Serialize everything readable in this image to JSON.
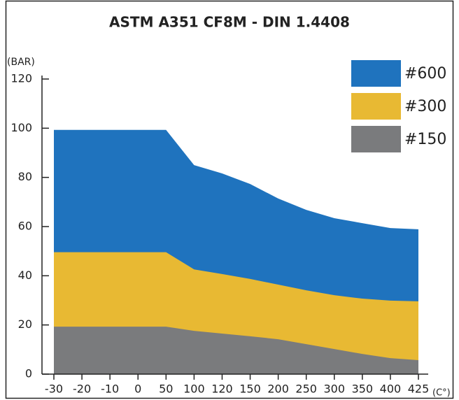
{
  "chart_data": {
    "type": "area",
    "title": "ASTM A351 CF8M - DIN 1.4408",
    "y_label": "(BAR)",
    "x_label": "(C°)",
    "categories": [
      "-30",
      "-20",
      "-10",
      "0",
      "50",
      "100",
      "120",
      "150",
      "200",
      "250",
      "300",
      "350",
      "400",
      "425"
    ],
    "series": [
      {
        "name": "#600",
        "color": "#1f73be",
        "values": [
          99.3,
          99.3,
          99.3,
          99.3,
          99.3,
          85.0,
          81.6,
          77.3,
          71.4,
          66.8,
          63.4,
          61.4,
          59.4,
          58.9
        ]
      },
      {
        "name": "#300",
        "color": "#e8b933",
        "values": [
          49.6,
          49.6,
          49.6,
          49.6,
          49.6,
          42.6,
          40.7,
          38.7,
          36.4,
          34.1,
          32.1,
          30.7,
          29.9,
          29.6
        ]
      },
      {
        "name": "#150",
        "color": "#7a7b7d",
        "values": [
          19.3,
          19.3,
          19.3,
          19.3,
          19.3,
          17.6,
          16.5,
          15.4,
          14.2,
          12.2,
          10.2,
          8.2,
          6.5,
          5.7
        ]
      }
    ],
    "ylim": [
      0,
      120
    ],
    "yticks": [
      0,
      20,
      40,
      60,
      80,
      100,
      120
    ],
    "legend": "top-right"
  }
}
